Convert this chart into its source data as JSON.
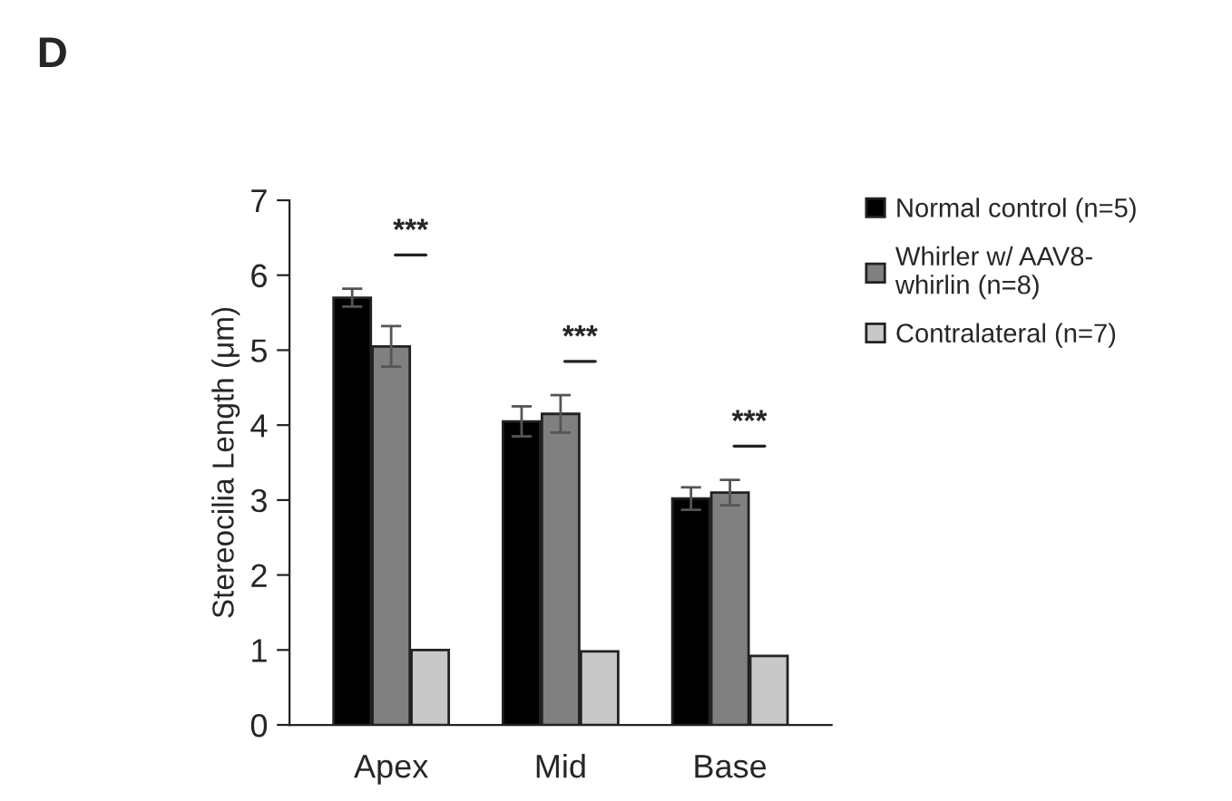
{
  "chart_data": {
    "type": "bar",
    "ylabel": "Stereocilia Length (μm)",
    "categories": [
      "Apex",
      "Mid",
      "Base"
    ],
    "series": [
      {
        "name": "Normal control (n=5)",
        "color": "#000000",
        "values": [
          5.7,
          4.05,
          3.02
        ],
        "errors": [
          0.12,
          0.2,
          0.15
        ]
      },
      {
        "name": "Whirler w/ AAV8-\nwhirlin (n=8)",
        "color": "#808080",
        "values": [
          5.05,
          4.15,
          3.1
        ],
        "errors": [
          0.27,
          0.25,
          0.17
        ]
      },
      {
        "name": "Contralateral (n=7)",
        "color": "#c8c8c8",
        "values": [
          1.0,
          0.98,
          0.92
        ]
      }
    ],
    "ylim": [
      0,
      7
    ],
    "yticks": [
      0,
      1,
      2,
      3,
      4,
      5,
      6,
      7
    ],
    "grid": false,
    "legend": "right",
    "annotations": [
      "D",
      "***",
      "***",
      "***"
    ]
  }
}
